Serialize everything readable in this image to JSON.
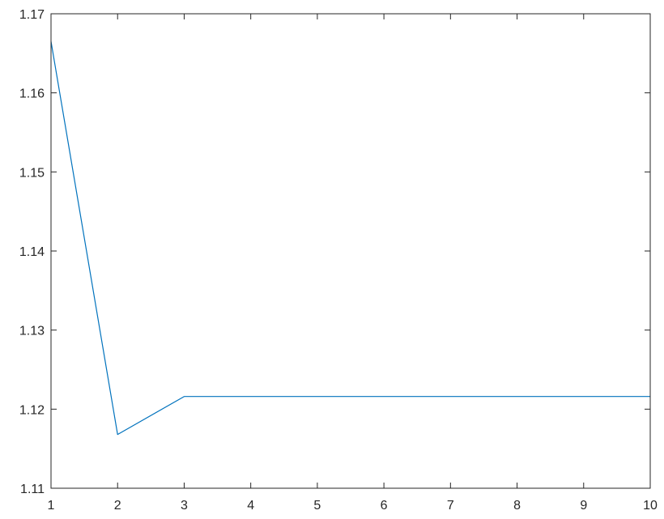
{
  "chart_data": {
    "type": "line",
    "title": "",
    "xlabel": "",
    "ylabel": "",
    "xlim": [
      1,
      10
    ],
    "ylim": [
      1.11,
      1.17
    ],
    "x_ticks": [
      1,
      2,
      3,
      4,
      5,
      6,
      7,
      8,
      9,
      10
    ],
    "x_tick_labels": [
      "1",
      "2",
      "3",
      "4",
      "5",
      "6",
      "7",
      "8",
      "9",
      "10"
    ],
    "y_ticks": [
      1.11,
      1.12,
      1.13,
      1.14,
      1.15,
      1.16,
      1.17
    ],
    "y_tick_labels": [
      "1.11",
      "1.12",
      "1.13",
      "1.14",
      "1.15",
      "1.16",
      "1.17"
    ],
    "grid": false,
    "box": true,
    "series": [
      {
        "color": "#0072BD",
        "x": [
          1,
          2,
          3,
          4,
          5,
          6,
          7,
          8,
          9,
          10
        ],
        "y": [
          1.1665,
          1.1168,
          1.1216,
          1.1216,
          1.1216,
          1.1216,
          1.1216,
          1.1216,
          1.1216,
          1.1216
        ]
      }
    ]
  }
}
